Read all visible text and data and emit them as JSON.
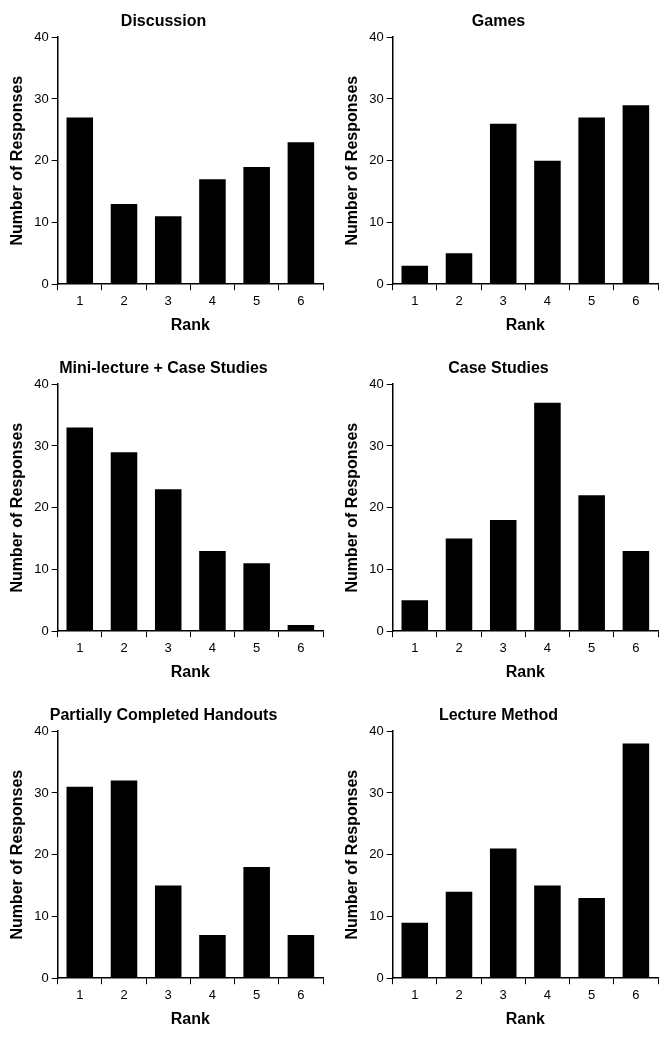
{
  "chart_data": [
    {
      "type": "bar",
      "title": "Discussion",
      "xlabel": "Rank",
      "ylabel": "Number of Responses",
      "categories": [
        "1",
        "2",
        "3",
        "4",
        "5",
        "6"
      ],
      "values": [
        27,
        13,
        11,
        17,
        19,
        23
      ],
      "color": "#000000",
      "ylim": [
        0,
        40
      ],
      "yticks": [
        0,
        10,
        20,
        30,
        40
      ],
      "grid": false
    },
    {
      "type": "bar",
      "title": "Games",
      "xlabel": "Rank",
      "ylabel": "Number of Responses",
      "categories": [
        "1",
        "2",
        "3",
        "4",
        "5",
        "6"
      ],
      "values": [
        3,
        5,
        26,
        20,
        27,
        29
      ],
      "color": "#000000",
      "ylim": [
        0,
        40
      ],
      "yticks": [
        0,
        10,
        20,
        30,
        40
      ],
      "grid": false
    },
    {
      "type": "bar",
      "title": "Mini-lecture + Case Studies",
      "xlabel": "Rank",
      "ylabel": "Number of Responses",
      "categories": [
        "1",
        "2",
        "3",
        "4",
        "5",
        "6"
      ],
      "values": [
        33,
        29,
        23,
        13,
        11,
        1
      ],
      "color": "#000000",
      "ylim": [
        0,
        40
      ],
      "yticks": [
        0,
        10,
        20,
        30,
        40
      ],
      "grid": false
    },
    {
      "type": "bar",
      "title": "Case Studies",
      "xlabel": "Rank",
      "ylabel": "Number of Responses",
      "categories": [
        "1",
        "2",
        "3",
        "4",
        "5",
        "6"
      ],
      "values": [
        5,
        15,
        18,
        37,
        22,
        13
      ],
      "color": "#000000",
      "ylim": [
        0,
        40
      ],
      "yticks": [
        0,
        10,
        20,
        30,
        40
      ],
      "grid": false
    },
    {
      "type": "bar",
      "title": "Partially Completed Handouts",
      "xlabel": "Rank",
      "ylabel": "Number of Responses",
      "categories": [
        "1",
        "2",
        "3",
        "4",
        "5",
        "6"
      ],
      "values": [
        31,
        32,
        15,
        7,
        18,
        7
      ],
      "color": "#000000",
      "ylim": [
        0,
        40
      ],
      "yticks": [
        0,
        10,
        20,
        30,
        40
      ],
      "grid": false
    },
    {
      "type": "bar",
      "title": "Lecture Method",
      "xlabel": "Rank",
      "ylabel": "Number of Responses",
      "categories": [
        "1",
        "2",
        "3",
        "4",
        "5",
        "6"
      ],
      "values": [
        9,
        14,
        21,
        15,
        13,
        38
      ],
      "color": "#000000",
      "ylim": [
        0,
        40
      ],
      "yticks": [
        0,
        10,
        20,
        30,
        40
      ],
      "grid": false
    }
  ]
}
